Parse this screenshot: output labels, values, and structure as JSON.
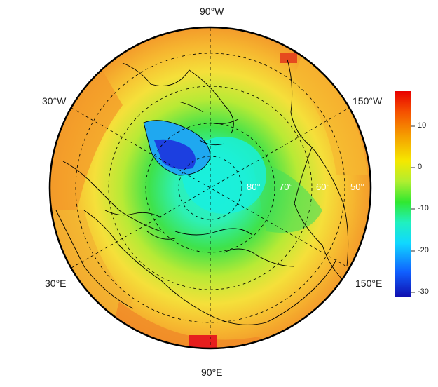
{
  "map": {
    "longitude_labels": {
      "top": "90°W",
      "upper_left": "30°W",
      "upper_right": "150°W",
      "lower_left": "30°E",
      "lower_right": "150°E",
      "bottom": "90°E"
    },
    "latitude_labels": [
      "80°",
      "70°",
      "60°",
      "50°"
    ],
    "colors": {
      "ocean_warm": "#f39a2a",
      "mid": "#f5e03a",
      "green": "#3fe24a",
      "cyan": "#1ff2d8",
      "greenland_low": "#1c3fe0",
      "hot_patch": "#e61e1e",
      "coastline": "#000000"
    }
  },
  "colorbar": {
    "ticks": [
      "10",
      "0",
      "-10",
      "-20",
      "-30"
    ],
    "min": -32,
    "max": 18,
    "stops": [
      "#1010b0",
      "#1060ff",
      "#10d8ff",
      "#20f0c0",
      "#30e830",
      "#b0ee30",
      "#f5e800",
      "#f5a000",
      "#f55000",
      "#e80000"
    ]
  }
}
